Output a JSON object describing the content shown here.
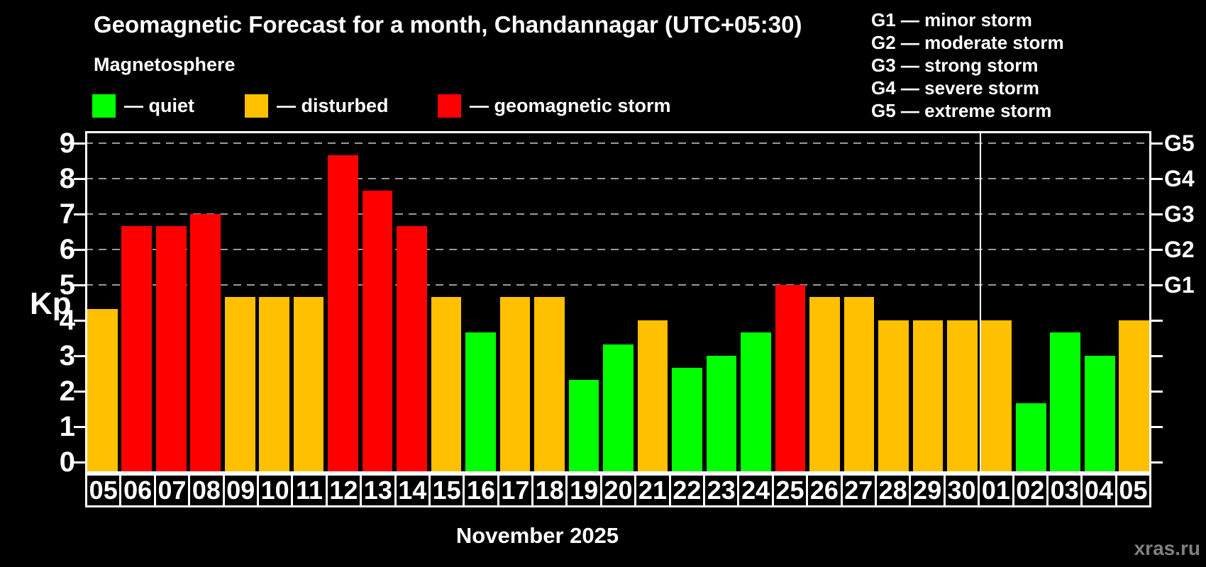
{
  "title": "Geomagnetic Forecast for a month, Chandannagar (UTC+05:30)",
  "subtitle": "Magnetosphere",
  "watermark": "xras.ru",
  "colors": {
    "quiet": "#00FF00",
    "disturbed": "#FFC000",
    "storm": "#FF0000",
    "grid": "#999999",
    "axis": "#FFFFFF",
    "watermark": "#808080",
    "background": "#000000"
  },
  "legend": {
    "items": [
      {
        "key": "quiet",
        "label": "— quiet",
        "color": "#00FF00"
      },
      {
        "key": "disturbed",
        "label": "— disturbed",
        "color": "#FFC000"
      },
      {
        "key": "storm",
        "label": "— geomagnetic storm",
        "color": "#FF0000"
      }
    ]
  },
  "g_legend": {
    "items": [
      "G1 — minor storm",
      "G2 — moderate storm",
      "G3 — strong storm",
      "G4 — severe storm",
      "G5 — extreme storm"
    ]
  },
  "chart_data": {
    "type": "bar",
    "title": "Geomagnetic Forecast for a month, Chandannagar (UTC+05:30)",
    "ylabel": "Kp",
    "month_label": "November 2025",
    "ylim": [
      -0.32,
      9.34
    ],
    "yticks": [
      0,
      1,
      2,
      3,
      4,
      5,
      6,
      7,
      8,
      9
    ],
    "gridline_values": [
      5,
      6,
      7,
      8,
      9
    ],
    "grid": "dashed horizontal at G-storm levels only",
    "legend_position": "top-left",
    "right_axis_labels": [
      {
        "value": 5,
        "label": "G1"
      },
      {
        "value": 6,
        "label": "G2"
      },
      {
        "value": 7,
        "label": "G3"
      },
      {
        "value": 8,
        "label": "G4"
      },
      {
        "value": 9,
        "label": "G5"
      }
    ],
    "separator_index": 26,
    "categories": [
      "05",
      "06",
      "07",
      "08",
      "09",
      "10",
      "11",
      "12",
      "13",
      "14",
      "15",
      "16",
      "17",
      "18",
      "19",
      "20",
      "21",
      "22",
      "23",
      "24",
      "25",
      "26",
      "27",
      "28",
      "29",
      "30",
      "01",
      "02",
      "03",
      "04",
      "05"
    ],
    "bars": [
      {
        "day": "05",
        "value": 4.33,
        "level": "disturbed"
      },
      {
        "day": "06",
        "value": 6.67,
        "level": "storm"
      },
      {
        "day": "07",
        "value": 6.67,
        "level": "storm"
      },
      {
        "day": "08",
        "value": 7.0,
        "level": "storm"
      },
      {
        "day": "09",
        "value": 4.67,
        "level": "disturbed"
      },
      {
        "day": "10",
        "value": 4.67,
        "level": "disturbed"
      },
      {
        "day": "11",
        "value": 4.67,
        "level": "disturbed"
      },
      {
        "day": "12",
        "value": 8.67,
        "level": "storm"
      },
      {
        "day": "13",
        "value": 7.67,
        "level": "storm"
      },
      {
        "day": "14",
        "value": 6.67,
        "level": "storm"
      },
      {
        "day": "15",
        "value": 4.67,
        "level": "disturbed"
      },
      {
        "day": "16",
        "value": 3.67,
        "level": "quiet"
      },
      {
        "day": "17",
        "value": 4.67,
        "level": "disturbed"
      },
      {
        "day": "18",
        "value": 4.67,
        "level": "disturbed"
      },
      {
        "day": "19",
        "value": 2.33,
        "level": "quiet"
      },
      {
        "day": "20",
        "value": 3.33,
        "level": "quiet"
      },
      {
        "day": "21",
        "value": 4.0,
        "level": "disturbed"
      },
      {
        "day": "22",
        "value": 2.67,
        "level": "quiet"
      },
      {
        "day": "23",
        "value": 3.0,
        "level": "quiet"
      },
      {
        "day": "24",
        "value": 3.67,
        "level": "quiet"
      },
      {
        "day": "25",
        "value": 5.0,
        "level": "storm"
      },
      {
        "day": "26",
        "value": 4.67,
        "level": "disturbed"
      },
      {
        "day": "27",
        "value": 4.67,
        "level": "disturbed"
      },
      {
        "day": "28",
        "value": 4.0,
        "level": "disturbed"
      },
      {
        "day": "29",
        "value": 4.0,
        "level": "disturbed"
      },
      {
        "day": "30",
        "value": 4.0,
        "level": "disturbed"
      },
      {
        "day": "01",
        "value": 4.0,
        "level": "disturbed"
      },
      {
        "day": "02",
        "value": 1.67,
        "level": "quiet"
      },
      {
        "day": "03",
        "value": 3.67,
        "level": "quiet"
      },
      {
        "day": "04",
        "value": 3.0,
        "level": "quiet"
      },
      {
        "day": "05",
        "value": 4.0,
        "level": "disturbed"
      }
    ]
  }
}
